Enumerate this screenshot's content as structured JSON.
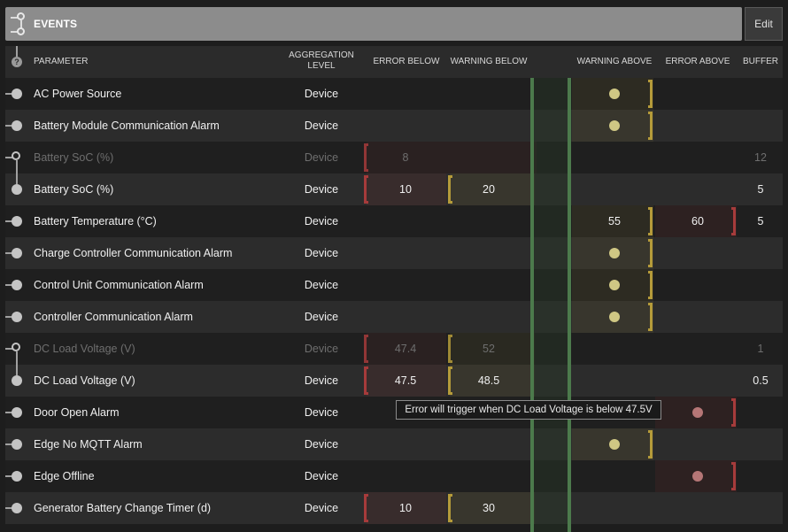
{
  "header": {
    "title": "EVENTS",
    "edit_label": "Edit"
  },
  "columns": {
    "help": "?",
    "parameter": "PARAMETER",
    "aggregation_line1": "AGGREGATION",
    "aggregation_line2": "LEVEL",
    "error_below": "ERROR BELOW",
    "warning_below": "WARNING BELOW",
    "warning_above": "WARNING ABOVE",
    "error_above": "ERROR ABOVE",
    "buffer": "BUFFER"
  },
  "rows": [
    {
      "name": "AC Power Source",
      "agg": "Device",
      "error_below": "",
      "warning_below": "",
      "warning_above": "",
      "error_above": "",
      "buffer": ""
    },
    {
      "name": "Battery Module Communication Alarm",
      "agg": "Device",
      "error_below": "",
      "warning_below": "",
      "warning_above": "",
      "error_above": "",
      "buffer": ""
    },
    {
      "name": "Battery SoC (%)",
      "agg": "Device",
      "error_below": "8",
      "warning_below": "",
      "warning_above": "",
      "error_above": "",
      "buffer": "12"
    },
    {
      "name": "Battery SoC (%)",
      "agg": "Device",
      "error_below": "10",
      "warning_below": "20",
      "warning_above": "",
      "error_above": "",
      "buffer": "5"
    },
    {
      "name": "Battery Temperature (°C)",
      "agg": "Device",
      "error_below": "",
      "warning_below": "",
      "warning_above": "55",
      "error_above": "60",
      "buffer": "5"
    },
    {
      "name": "Charge Controller Communication Alarm",
      "agg": "Device",
      "error_below": "",
      "warning_below": "",
      "warning_above": "",
      "error_above": "",
      "buffer": ""
    },
    {
      "name": "Control Unit Communication Alarm",
      "agg": "Device",
      "error_below": "",
      "warning_below": "",
      "warning_above": "",
      "error_above": "",
      "buffer": ""
    },
    {
      "name": "Controller Communication Alarm",
      "agg": "Device",
      "error_below": "",
      "warning_below": "",
      "warning_above": "",
      "error_above": "",
      "buffer": ""
    },
    {
      "name": "DC Load Voltage (V)",
      "agg": "Device",
      "error_below": "47.4",
      "warning_below": "52",
      "warning_above": "",
      "error_above": "",
      "buffer": "1"
    },
    {
      "name": "DC Load Voltage (V)",
      "agg": "Device",
      "error_below": "47.5",
      "warning_below": "48.5",
      "warning_above": "",
      "error_above": "",
      "buffer": "0.5"
    },
    {
      "name": "Door Open Alarm",
      "agg": "Device",
      "error_below": "",
      "warning_below": "",
      "warning_above": "",
      "error_above": "",
      "buffer": ""
    },
    {
      "name": "Edge No MQTT Alarm",
      "agg": "Device",
      "error_below": "",
      "warning_below": "",
      "warning_above": "",
      "error_above": "",
      "buffer": ""
    },
    {
      "name": "Edge Offline",
      "agg": "Device",
      "error_below": "",
      "warning_below": "",
      "warning_above": "",
      "error_above": "",
      "buffer": ""
    },
    {
      "name": "Generator Battery Change Timer (d)",
      "agg": "Device",
      "error_below": "10",
      "warning_below": "30",
      "warning_above": "",
      "error_above": "",
      "buffer": ""
    }
  ],
  "tooltip": "Error will trigger when DC Load Voltage is below 47.5V",
  "colors": {
    "error": "#a63b3b",
    "warning": "#b59b3a",
    "ok": "#4c7a4c"
  }
}
